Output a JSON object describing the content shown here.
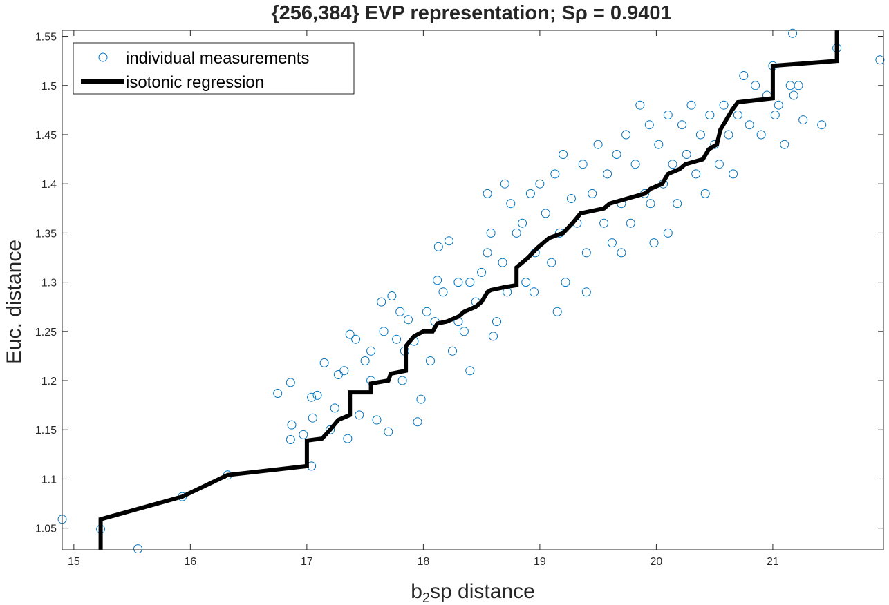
{
  "chart_data": {
    "type": "scatter",
    "title": "{256,384}  EVP  representation;  Sρ  =  0.9401",
    "xlabel_prefix": "b",
    "xlabel_sub": "2",
    "xlabel_suffix": "sp  distance",
    "ylabel": "Euc. distance",
    "xlim": [
      14.9,
      21.95
    ],
    "ylim": [
      1.028,
      1.556
    ],
    "xticks": [
      15,
      16,
      17,
      18,
      19,
      20,
      21
    ],
    "yticks": [
      1.05,
      1.1,
      1.15,
      1.2,
      1.25,
      1.3,
      1.35,
      1.4,
      1.45,
      1.5,
      1.55
    ],
    "grid": false,
    "legend_position": "top-left",
    "colors": {
      "scatter": "#0072BD",
      "regression": "#000000",
      "axis": "#262626"
    },
    "legend": [
      {
        "label": "individual measurements",
        "marker": "circle"
      },
      {
        "label": "isotonic regression",
        "marker": "line"
      }
    ],
    "series": [
      {
        "name": "individual measurements",
        "type": "scatter",
        "points": [
          [
            14.9,
            1.059
          ],
          [
            15.23,
            1.049
          ],
          [
            15.55,
            1.029
          ],
          [
            15.93,
            1.082
          ],
          [
            16.32,
            1.104
          ],
          [
            16.75,
            1.187
          ],
          [
            16.86,
            1.198
          ],
          [
            16.87,
            1.155
          ],
          [
            16.86,
            1.14
          ],
          [
            16.97,
            1.145
          ],
          [
            17.04,
            1.113
          ],
          [
            17.05,
            1.162
          ],
          [
            17.04,
            1.183
          ],
          [
            17.09,
            1.185
          ],
          [
            17.15,
            1.218
          ],
          [
            17.2,
            1.15
          ],
          [
            17.24,
            1.172
          ],
          [
            17.27,
            1.206
          ],
          [
            17.32,
            1.21
          ],
          [
            17.37,
            1.247
          ],
          [
            17.42,
            1.242
          ],
          [
            17.45,
            1.165
          ],
          [
            17.5,
            1.22
          ],
          [
            17.55,
            1.2
          ],
          [
            17.6,
            1.16
          ],
          [
            17.64,
            1.28
          ],
          [
            17.66,
            1.25
          ],
          [
            17.7,
            1.148
          ],
          [
            17.73,
            1.286
          ],
          [
            17.77,
            1.242
          ],
          [
            17.82,
            1.2
          ],
          [
            17.84,
            1.23
          ],
          [
            17.87,
            1.262
          ],
          [
            17.92,
            1.24
          ],
          [
            17.95,
            1.158
          ],
          [
            17.98,
            1.181
          ],
          [
            18.03,
            1.27
          ],
          [
            18.06,
            1.22
          ],
          [
            18.1,
            1.26
          ],
          [
            18.12,
            1.302
          ],
          [
            18.13,
            1.336
          ],
          [
            18.17,
            1.29
          ],
          [
            18.22,
            1.342
          ],
          [
            18.25,
            1.23
          ],
          [
            18.3,
            1.3
          ],
          [
            18.35,
            1.25
          ],
          [
            18.4,
            1.21
          ],
          [
            18.45,
            1.28
          ],
          [
            18.5,
            1.31
          ],
          [
            18.55,
            1.33
          ],
          [
            18.58,
            1.35
          ],
          [
            18.63,
            1.26
          ],
          [
            18.68,
            1.32
          ],
          [
            18.72,
            1.29
          ],
          [
            18.75,
            1.38
          ],
          [
            18.8,
            1.35
          ],
          [
            18.85,
            1.36
          ],
          [
            18.88,
            1.3
          ],
          [
            18.92,
            1.39
          ],
          [
            18.96,
            1.33
          ],
          [
            19.0,
            1.4
          ],
          [
            19.05,
            1.37
          ],
          [
            19.1,
            1.32
          ],
          [
            19.13,
            1.41
          ],
          [
            19.17,
            1.35
          ],
          [
            19.22,
            1.3
          ],
          [
            19.27,
            1.385
          ],
          [
            19.32,
            1.36
          ],
          [
            19.37,
            1.42
          ],
          [
            19.4,
            1.33
          ],
          [
            19.45,
            1.39
          ],
          [
            19.5,
            1.44
          ],
          [
            19.55,
            1.36
          ],
          [
            19.58,
            1.41
          ],
          [
            19.62,
            1.34
          ],
          [
            19.66,
            1.43
          ],
          [
            19.7,
            1.38
          ],
          [
            19.74,
            1.45
          ],
          [
            19.78,
            1.36
          ],
          [
            19.82,
            1.42
          ],
          [
            19.86,
            1.48
          ],
          [
            19.9,
            1.39
          ],
          [
            19.94,
            1.46
          ],
          [
            19.98,
            1.34
          ],
          [
            20.02,
            1.44
          ],
          [
            20.06,
            1.4
          ],
          [
            20.1,
            1.47
          ],
          [
            20.14,
            1.42
          ],
          [
            20.18,
            1.38
          ],
          [
            20.22,
            1.46
          ],
          [
            20.26,
            1.43
          ],
          [
            20.3,
            1.48
          ],
          [
            20.34,
            1.41
          ],
          [
            20.38,
            1.45
          ],
          [
            20.42,
            1.39
          ],
          [
            20.46,
            1.47
          ],
          [
            20.5,
            1.44
          ],
          [
            20.54,
            1.42
          ],
          [
            20.58,
            1.48
          ],
          [
            20.62,
            1.45
          ],
          [
            20.66,
            1.41
          ],
          [
            20.7,
            1.47
          ],
          [
            20.75,
            1.51
          ],
          [
            20.8,
            1.46
          ],
          [
            20.85,
            1.5
          ],
          [
            20.9,
            1.45
          ],
          [
            20.95,
            1.49
          ],
          [
            21.0,
            1.52
          ],
          [
            21.02,
            1.47
          ],
          [
            21.05,
            1.48
          ],
          [
            21.1,
            1.44
          ],
          [
            21.15,
            1.5
          ],
          [
            21.18,
            1.49
          ],
          [
            21.22,
            1.5
          ],
          [
            21.26,
            1.465
          ],
          [
            21.42,
            1.46
          ],
          [
            21.17,
            1.553
          ],
          [
            21.55,
            1.538
          ],
          [
            21.92,
            1.526
          ],
          [
            18.95,
            1.29
          ],
          [
            19.15,
            1.27
          ],
          [
            19.4,
            1.29
          ],
          [
            18.4,
            1.3
          ],
          [
            18.6,
            1.245
          ],
          [
            18.3,
            1.26
          ],
          [
            19.7,
            1.33
          ],
          [
            19.95,
            1.38
          ],
          [
            20.1,
            1.35
          ],
          [
            17.35,
            1.141
          ],
          [
            17.55,
            1.23
          ],
          [
            17.8,
            1.27
          ],
          [
            18.55,
            1.39
          ],
          [
            18.7,
            1.4
          ],
          [
            19.2,
            1.43
          ]
        ]
      },
      {
        "name": "isotonic regression",
        "type": "step",
        "points": [
          [
            15.23,
            1.028
          ],
          [
            15.23,
            1.059
          ],
          [
            15.93,
            1.082
          ],
          [
            16.32,
            1.104
          ],
          [
            17.0,
            1.113
          ],
          [
            17.0,
            1.139
          ],
          [
            17.13,
            1.141
          ],
          [
            17.2,
            1.15
          ],
          [
            17.27,
            1.16
          ],
          [
            17.37,
            1.165
          ],
          [
            17.37,
            1.188
          ],
          [
            17.55,
            1.188
          ],
          [
            17.55,
            1.197
          ],
          [
            17.7,
            1.2
          ],
          [
            17.72,
            1.207
          ],
          [
            17.85,
            1.21
          ],
          [
            17.85,
            1.235
          ],
          [
            17.92,
            1.245
          ],
          [
            18.0,
            1.25
          ],
          [
            18.08,
            1.25
          ],
          [
            18.12,
            1.258
          ],
          [
            18.2,
            1.26
          ],
          [
            18.3,
            1.265
          ],
          [
            18.35,
            1.27
          ],
          [
            18.45,
            1.275
          ],
          [
            18.5,
            1.28
          ],
          [
            18.55,
            1.29
          ],
          [
            18.58,
            1.292
          ],
          [
            18.7,
            1.295
          ],
          [
            18.8,
            1.297
          ],
          [
            18.8,
            1.315
          ],
          [
            18.9,
            1.325
          ],
          [
            18.98,
            1.335
          ],
          [
            19.08,
            1.345
          ],
          [
            19.2,
            1.35
          ],
          [
            19.28,
            1.36
          ],
          [
            19.35,
            1.37
          ],
          [
            19.55,
            1.375
          ],
          [
            19.6,
            1.38
          ],
          [
            19.75,
            1.385
          ],
          [
            19.9,
            1.39
          ],
          [
            19.95,
            1.395
          ],
          [
            20.05,
            1.4
          ],
          [
            20.1,
            1.41
          ],
          [
            20.2,
            1.415
          ],
          [
            20.25,
            1.42
          ],
          [
            20.4,
            1.425
          ],
          [
            20.45,
            1.435
          ],
          [
            20.52,
            1.44
          ],
          [
            20.55,
            1.455
          ],
          [
            20.6,
            1.465
          ],
          [
            20.65,
            1.475
          ],
          [
            20.7,
            1.483
          ],
          [
            20.85,
            1.485
          ],
          [
            21.0,
            1.487
          ],
          [
            21.0,
            1.52
          ],
          [
            21.55,
            1.525
          ],
          [
            21.55,
            1.556
          ]
        ]
      }
    ]
  }
}
